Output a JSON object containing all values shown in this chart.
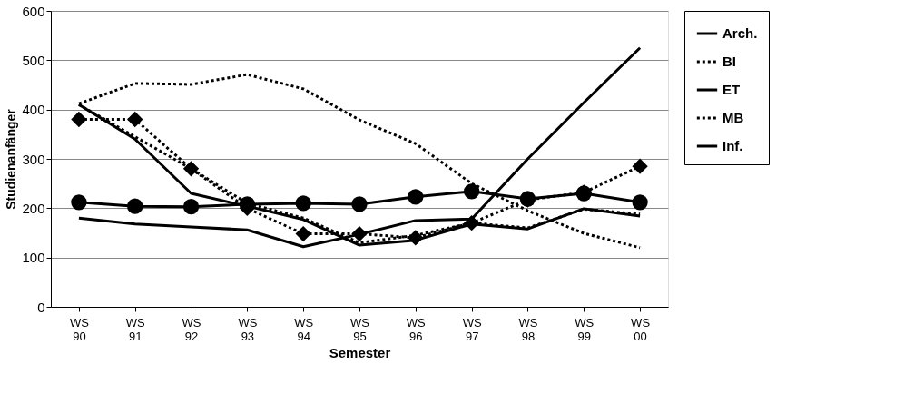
{
  "chart_data": {
    "type": "line",
    "xlabel": "Semester",
    "ylabel": "Studienanfänger",
    "categories": [
      "WS 90",
      "WS 91",
      "WS 92",
      "WS 93",
      "WS 94",
      "WS 95",
      "WS 96",
      "WS 97",
      "WS 98",
      "WS 99",
      "WS 00"
    ],
    "ylim": [
      0,
      600
    ],
    "yticks": [
      0,
      100,
      200,
      300,
      400,
      500,
      600
    ],
    "grid": "y",
    "legend": "right",
    "series": [
      {
        "name": null,
        "color": "#000000",
        "marker": "none",
        "line_style": "dotted",
        "values": [
          412,
          453,
          451,
          471,
          442,
          379,
          331,
          250,
          195,
          149,
          120
        ]
      },
      {
        "name": "Arch.",
        "color": "#000000",
        "marker": "circle",
        "line_style": "solid",
        "values": [
          212,
          204,
          203,
          208,
          210,
          208,
          223,
          234,
          219,
          230,
          212
        ]
      },
      {
        "name": "BI",
        "color": "#000000",
        "marker": "none",
        "line_style": "dotted",
        "values": [
          410,
          345,
          280,
          210,
          180,
          130,
          145,
          170,
          160,
          198,
          188
        ]
      },
      {
        "name": "ET",
        "color": "#000000",
        "marker": "none",
        "line_style": "solid",
        "values": [
          410,
          340,
          230,
          204,
          177,
          125,
          135,
          168,
          158,
          199,
          184
        ]
      },
      {
        "name": "MB",
        "color": "#000000",
        "marker": "diamond",
        "line_style": "dotted",
        "values": [
          380,
          380,
          280,
          200,
          148,
          148,
          140,
          170,
          217,
          232,
          285
        ]
      },
      {
        "name": "Inf.",
        "color": "#000000",
        "marker": "none",
        "line_style": "solid",
        "values": [
          180,
          168,
          162,
          156,
          122,
          147,
          175,
          178,
          300,
          414,
          525
        ]
      }
    ]
  }
}
